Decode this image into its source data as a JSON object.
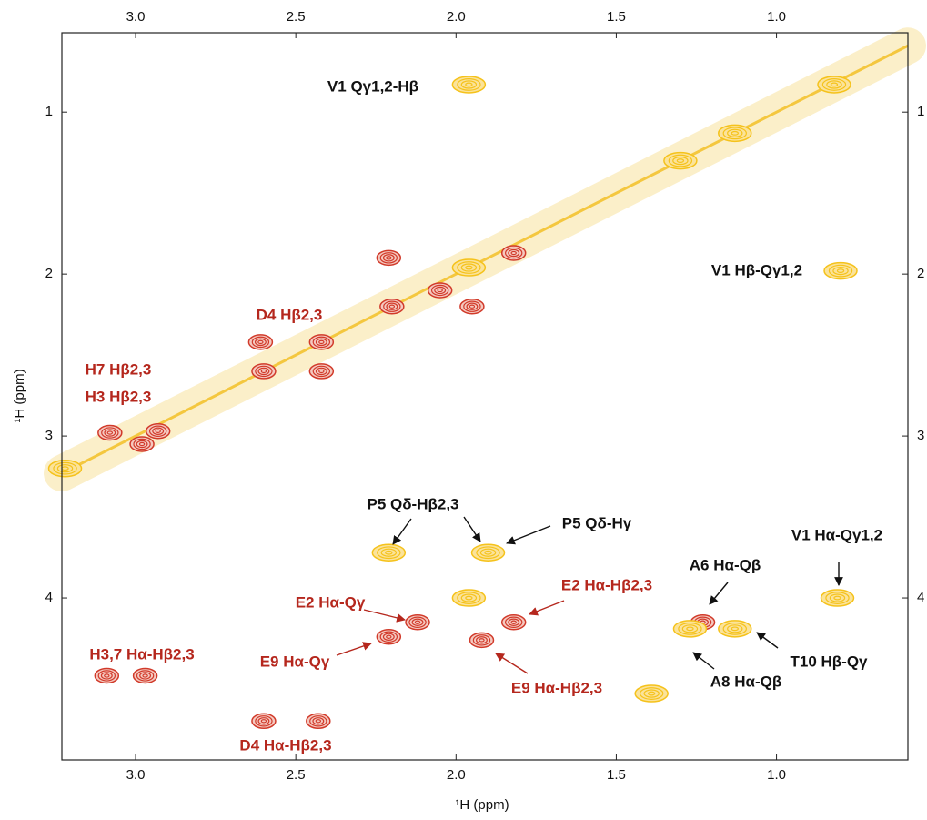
{
  "chart_data": {
    "type": "nmr2d",
    "x_label": "¹H (ppm)",
    "y_label": "¹H (ppm)",
    "xlim": [
      3.23,
      0.59
    ],
    "ylim": [
      0.51,
      5.0
    ],
    "xticks": [
      {
        "value": 3,
        "label": "3.0"
      },
      2.5,
      {
        "value": 2,
        "label": "2.0"
      },
      1.5,
      {
        "value": 1,
        "label": "1.0"
      }
    ],
    "yticks": [
      1,
      2,
      3,
      4
    ],
    "series": [
      {
        "color": "#d13a2a",
        "x": [
          2.61,
          2.42,
          2.6,
          2.42,
          3.08,
          2.93,
          2.98,
          2.21,
          2.05,
          1.82,
          2.2,
          1.95,
          2.12,
          1.82,
          2.21,
          1.92,
          3.09,
          2.97,
          2.6,
          2.43,
          1.23
        ],
        "y": [
          2.42,
          2.42,
          2.6,
          2.6,
          2.98,
          2.97,
          3.05,
          1.9,
          2.1,
          1.87,
          2.2,
          2.2,
          4.15,
          4.15,
          4.24,
          4.26,
          4.48,
          4.48,
          4.76,
          4.76,
          4.15
        ]
      },
      {
        "color": "#f5c21b",
        "x": [
          1.96,
          0.8,
          2.21,
          1.9,
          1.96,
          0.81,
          1.27,
          1.13,
          1.39,
          0.82,
          1.13,
          1.3,
          1.96,
          3.22
        ],
        "y": [
          0.83,
          1.98,
          3.72,
          3.72,
          4.0,
          4.0,
          4.19,
          4.19,
          4.59,
          0.83,
          1.13,
          1.3,
          1.96,
          3.2
        ]
      }
    ],
    "annotations": [
      {
        "text": "V1 Qγ1,2-Hβ",
        "color": "#111111"
      },
      {
        "text": "V1 Hβ-Qγ1,2",
        "color": "#111111"
      },
      {
        "text": "D4 Hβ2,3",
        "color": "#b5271d"
      },
      {
        "text": "H7 Hβ2,3",
        "color": "#b5271d"
      },
      {
        "text": "H3 Hβ2,3",
        "color": "#b5271d"
      },
      {
        "text": "P5 Qδ-Hβ2,3",
        "color": "#111111"
      },
      {
        "text": "P5 Qδ-Hγ",
        "color": "#111111"
      },
      {
        "text": "V1 Hα-Qγ1,2",
        "color": "#111111"
      },
      {
        "text": "A6 Hα-Qβ",
        "color": "#111111"
      },
      {
        "text": "E2 Hα-Qγ",
        "color": "#b5271d"
      },
      {
        "text": "E2 Hα-Hβ2,3",
        "color": "#b5271d"
      },
      {
        "text": "H3,7 Hα-Hβ2,3",
        "color": "#b5271d"
      },
      {
        "text": "E9 Hα-Qγ",
        "color": "#b5271d"
      },
      {
        "text": "T10 Hβ-Qγ",
        "color": "#111111"
      },
      {
        "text": "A8 Hα-Qβ",
        "color": "#111111"
      },
      {
        "text": "E9 Hα-Hβ2,3",
        "color": "#b5271d"
      },
      {
        "text": "D4 Hα-Hβ2,3",
        "color": "#b5271d"
      }
    ]
  }
}
